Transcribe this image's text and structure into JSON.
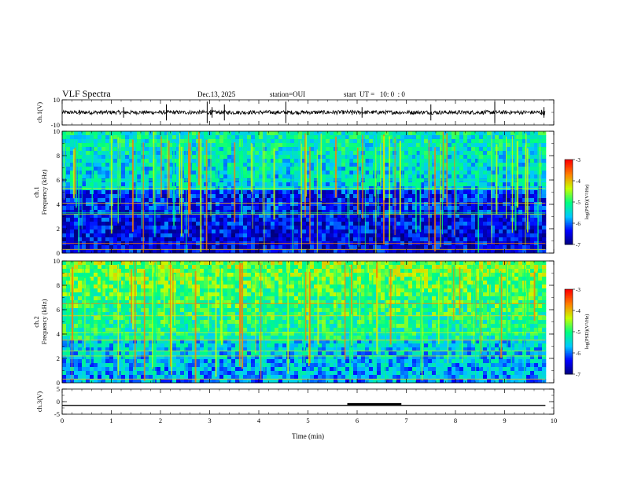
{
  "header": {
    "title": "VLF Spectra",
    "date": "Dec.13, 2025",
    "station": "station=OUI",
    "start": "start  UT =   10: 0  : 0"
  },
  "chart_data": [
    {
      "type": "line",
      "name": "ch1-waveform",
      "ylabel": "ch.1(V)",
      "ylim": [
        -10,
        10
      ],
      "ytick_labels": [
        "10",
        "-10"
      ],
      "baseline": 0
    },
    {
      "type": "heatmap",
      "name": "ch1-spectrogram",
      "ylabel": "ch.1\nFrequency (kHz)",
      "ylim": [
        0,
        10
      ],
      "ytick_labels": [
        "0",
        "2",
        "4",
        "6",
        "8",
        "10"
      ],
      "colorbar": {
        "label": "log(PSD)(V²/Hz)",
        "range": [
          -7,
          -3
        ],
        "tick_labels": [
          "-3",
          "-4",
          "-5",
          "-6",
          "-7"
        ]
      },
      "colorscale": [
        "#00007a",
        "#0000ff",
        "#00c8ff",
        "#00ff80",
        "#c8ff00",
        "#ff8000",
        "#ff0000"
      ]
    },
    {
      "type": "heatmap",
      "name": "ch2-spectrogram",
      "ylabel": "ch.2\nFrequency (kHz)",
      "ylim": [
        0,
        10
      ],
      "ytick_labels": [
        "0",
        "2",
        "4",
        "6",
        "8",
        "10"
      ],
      "colorbar": {
        "label": "log(PSD)(V²/Hz)",
        "range": [
          -7,
          -3
        ],
        "tick_labels": [
          "-3",
          "-4",
          "-5",
          "-6",
          "-7"
        ]
      }
    },
    {
      "type": "line",
      "name": "ch3-trace",
      "ylabel": "ch.3(V)",
      "ylim": [
        -5,
        5
      ],
      "ytick_labels": [
        "5",
        "0",
        "-5"
      ],
      "baseline": -1.5,
      "pulse": {
        "x_start": 5.8,
        "x_end": 6.9,
        "value": -1.0
      }
    }
  ],
  "xaxis": {
    "label": "Time (min)",
    "xlim": [
      0,
      10
    ],
    "tick_labels": [
      "0",
      "1",
      "2",
      "3",
      "4",
      "5",
      "6",
      "7",
      "8",
      "9",
      "10"
    ],
    "data_end": 9.83
  }
}
